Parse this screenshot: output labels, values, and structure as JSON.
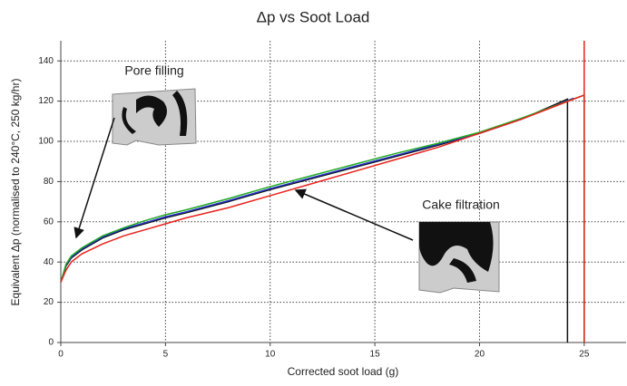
{
  "chart_data": {
    "type": "line",
    "title": "Δp vs Soot Load",
    "x_label": "Corrected soot load (g)",
    "y_label": "Equivalent Δp (normalised to 240°C, 250 kg/hr)",
    "xlim": [
      0,
      27
    ],
    "ylim": [
      0,
      150
    ],
    "xticks": [
      0,
      5,
      10,
      15,
      20,
      25
    ],
    "yticks": [
      0,
      20,
      40,
      60,
      80,
      100,
      120,
      140
    ],
    "grid": true,
    "annotations": [
      "Pore filling",
      "Cake filtration"
    ],
    "series": [
      {
        "name": "black",
        "color": "#111111",
        "x": [
          0,
          0.25,
          0.5,
          1,
          2,
          3,
          4,
          5,
          6,
          8,
          10,
          12,
          14,
          16,
          18,
          20,
          22,
          24.2,
          24.2
        ],
        "values": [
          30,
          38,
          42,
          46,
          52,
          56,
          59,
          62,
          64.5,
          70,
          76,
          81.5,
          87,
          92.5,
          98,
          104,
          111,
          121,
          0
        ]
      },
      {
        "name": "blue",
        "color": "#2233cc",
        "x": [
          0,
          0.25,
          0.5,
          1,
          2,
          3,
          4,
          5,
          6,
          8,
          10,
          12,
          14,
          16,
          18,
          20,
          22,
          24.5
        ],
        "values": [
          30,
          38.5,
          42.5,
          46.5,
          52.5,
          56.5,
          59.5,
          62.5,
          65,
          70.5,
          76.5,
          82,
          87.5,
          93,
          98.5,
          104,
          111,
          121.5
        ]
      },
      {
        "name": "green",
        "color": "#22aa22",
        "x": [
          0,
          0.25,
          0.5,
          1,
          2,
          3,
          4,
          5,
          6,
          8,
          10,
          12,
          14,
          16,
          18,
          20,
          22,
          25,
          25
        ],
        "values": [
          30,
          39,
          43,
          47,
          53,
          57,
          60.5,
          63.5,
          66,
          71.5,
          77.5,
          83,
          88.5,
          94,
          99,
          104.5,
          111.5,
          123,
          0
        ]
      },
      {
        "name": "red",
        "color": "#e8221b",
        "x": [
          0,
          0.25,
          0.5,
          1,
          2,
          3,
          4,
          5,
          6,
          8,
          10,
          12,
          14,
          16,
          18,
          20,
          22,
          25,
          25,
          25
        ],
        "values": [
          30,
          36,
          40,
          44,
          49,
          53,
          56,
          59,
          62,
          67,
          73,
          79,
          85,
          91,
          97,
          104,
          111,
          123,
          150,
          0
        ]
      }
    ]
  }
}
